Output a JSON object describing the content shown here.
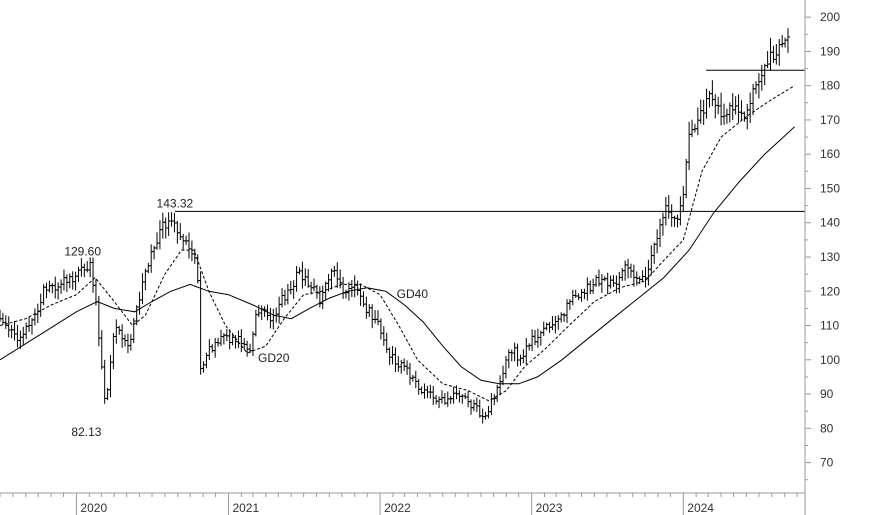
{
  "chart_data": {
    "type": "bar",
    "subtype": "ohlc",
    "title": "",
    "xlabel": "",
    "ylabel": "",
    "ylim": [
      62,
      205
    ],
    "y_ticks": [
      70,
      80,
      90,
      100,
      110,
      120,
      130,
      140,
      150,
      160,
      170,
      180,
      190,
      200
    ],
    "x_range": [
      "2019-07-01",
      "2024-10-20"
    ],
    "x_ticks": [
      {
        "date": "2020-01-01",
        "label": "2020"
      },
      {
        "date": "2021-01-01",
        "label": "2021"
      },
      {
        "date": "2022-01-01",
        "label": "2022"
      },
      {
        "date": "2023-01-01",
        "label": "2023"
      },
      {
        "date": "2024-01-01",
        "label": "2024"
      }
    ],
    "grid": false,
    "price_path": [
      [
        "2019-07-01",
        114
      ],
      [
        "2019-08-15",
        106
      ],
      [
        "2019-09-20",
        110
      ],
      [
        "2019-10-20",
        120
      ],
      [
        "2019-12-01",
        122
      ],
      [
        "2020-01-10",
        125
      ],
      [
        "2020-02-10",
        128
      ],
      [
        "2020-02-28",
        112
      ],
      [
        "2020-03-18",
        85
      ],
      [
        "2020-04-10",
        110
      ],
      [
        "2020-05-15",
        104
      ],
      [
        "2020-06-10",
        120
      ],
      [
        "2020-07-05",
        130
      ],
      [
        "2020-08-01",
        139
      ],
      [
        "2020-08-25",
        140
      ],
      [
        "2020-09-20",
        135
      ],
      [
        "2020-10-10",
        132
      ],
      [
        "2020-10-25",
        126
      ],
      [
        "2020-11-02",
        98
      ],
      [
        "2020-11-25",
        103
      ],
      [
        "2020-12-20",
        106
      ],
      [
        "2021-02-01",
        106
      ],
      [
        "2021-03-01",
        104
      ],
      [
        "2021-03-20",
        115
      ],
      [
        "2021-04-20",
        112
      ],
      [
        "2021-05-20",
        118
      ],
      [
        "2021-06-25",
        125
      ],
      [
        "2021-07-25",
        122
      ],
      [
        "2021-08-20",
        117
      ],
      [
        "2021-09-15",
        127
      ],
      [
        "2021-10-15",
        120
      ],
      [
        "2021-11-10",
        122
      ],
      [
        "2021-12-01",
        115
      ],
      [
        "2021-12-31",
        112
      ],
      [
        "2022-01-25",
        102
      ],
      [
        "2022-03-01",
        98
      ],
      [
        "2022-04-15",
        92
      ],
      [
        "2022-06-01",
        87
      ],
      [
        "2022-07-10",
        91
      ],
      [
        "2022-08-20",
        86
      ],
      [
        "2022-09-20",
        84
      ],
      [
        "2022-10-25",
        93
      ],
      [
        "2022-11-15",
        104
      ],
      [
        "2022-12-15",
        100
      ],
      [
        "2023-01-10",
        106
      ],
      [
        "2023-02-10",
        109
      ],
      [
        "2023-03-15",
        112
      ],
      [
        "2023-04-20",
        119
      ],
      [
        "2023-05-25",
        121
      ],
      [
        "2023-06-25",
        124
      ],
      [
        "2023-07-25",
        122
      ],
      [
        "2023-08-25",
        128
      ],
      [
        "2023-09-25",
        122
      ],
      [
        "2023-10-20",
        128
      ],
      [
        "2023-11-10",
        138
      ],
      [
        "2023-11-28",
        145
      ],
      [
        "2023-12-15",
        139
      ],
      [
        "2024-01-05",
        146
      ],
      [
        "2024-01-22",
        166
      ],
      [
        "2024-02-20",
        172
      ],
      [
        "2024-03-15",
        178
      ],
      [
        "2024-04-10",
        170
      ],
      [
        "2024-05-10",
        175
      ],
      [
        "2024-06-01",
        170
      ],
      [
        "2024-07-01",
        180
      ],
      [
        "2024-08-01",
        188
      ],
      [
        "2024-08-20",
        190
      ],
      [
        "2024-09-15",
        193
      ]
    ],
    "annotations": [
      {
        "text": "143.32",
        "date": "2020-08-25",
        "value": 143.32
      },
      {
        "text": "129.60",
        "date": "2020-02-10",
        "value": 129.6
      },
      {
        "text": "82.13",
        "date": "2020-03-18",
        "value": 82.13
      },
      {
        "text": "GD20",
        "date": "2021-04-20",
        "value": 104
      },
      {
        "text": "GD40",
        "date": "2022-02-10",
        "value": 118
      }
    ],
    "horizontal_lines": [
      {
        "value": 143.32,
        "from": "2020-08-25",
        "to": "2024-10-20"
      },
      {
        "value": 184.5,
        "from": "2024-02-25",
        "to": "2024-10-20"
      }
    ],
    "moving_averages": [
      {
        "name": "GD20",
        "style": "dashed",
        "points": [
          [
            "2019-07-01",
            110
          ],
          [
            "2019-09-01",
            112
          ],
          [
            "2019-11-01",
            116
          ],
          [
            "2020-01-01",
            119
          ],
          [
            "2020-02-15",
            124
          ],
          [
            "2020-04-01",
            117
          ],
          [
            "2020-05-15",
            110
          ],
          [
            "2020-06-15",
            113
          ],
          [
            "2020-08-01",
            125
          ],
          [
            "2020-09-10",
            132
          ],
          [
            "2020-10-10",
            132
          ],
          [
            "2020-11-15",
            120
          ],
          [
            "2020-12-25",
            110
          ],
          [
            "2021-02-15",
            102
          ],
          [
            "2021-04-01",
            104
          ],
          [
            "2021-05-15",
            112
          ],
          [
            "2021-07-01",
            119
          ],
          [
            "2021-08-15",
            120
          ],
          [
            "2021-10-01",
            122
          ],
          [
            "2021-11-15",
            122
          ],
          [
            "2022-01-01",
            119
          ],
          [
            "2022-02-15",
            110
          ],
          [
            "2022-04-01",
            100
          ],
          [
            "2022-06-01",
            93
          ],
          [
            "2022-08-01",
            91
          ],
          [
            "2022-09-20",
            88
          ],
          [
            "2022-11-01",
            91
          ],
          [
            "2022-12-15",
            98
          ],
          [
            "2023-02-01",
            103
          ],
          [
            "2023-04-01",
            110
          ],
          [
            "2023-06-01",
            117
          ],
          [
            "2023-08-01",
            121
          ],
          [
            "2023-10-01",
            123
          ],
          [
            "2023-11-15",
            129
          ],
          [
            "2024-01-01",
            135
          ],
          [
            "2024-02-15",
            155
          ],
          [
            "2024-04-01",
            165
          ],
          [
            "2024-06-01",
            171
          ],
          [
            "2024-08-01",
            176
          ],
          [
            "2024-09-25",
            180
          ]
        ]
      },
      {
        "name": "GD40",
        "style": "solid",
        "points": [
          [
            "2019-07-01",
            100
          ],
          [
            "2019-10-01",
            107
          ],
          [
            "2020-01-01",
            114
          ],
          [
            "2020-02-20",
            117
          ],
          [
            "2020-04-01",
            115
          ],
          [
            "2020-05-20",
            114
          ],
          [
            "2020-07-01",
            117
          ],
          [
            "2020-08-15",
            120
          ],
          [
            "2020-10-01",
            122
          ],
          [
            "2020-11-15",
            120
          ],
          [
            "2021-01-01",
            119
          ],
          [
            "2021-03-01",
            116
          ],
          [
            "2021-04-20",
            113
          ],
          [
            "2021-06-01",
            112
          ],
          [
            "2021-07-15",
            115
          ],
          [
            "2021-09-01",
            118
          ],
          [
            "2021-10-15",
            120
          ],
          [
            "2021-12-01",
            121
          ],
          [
            "2022-01-15",
            120
          ],
          [
            "2022-03-01",
            116
          ],
          [
            "2022-04-15",
            111
          ],
          [
            "2022-06-01",
            104
          ],
          [
            "2022-07-15",
            98
          ],
          [
            "2022-09-01",
            94
          ],
          [
            "2022-10-15",
            93
          ],
          [
            "2022-12-01",
            93
          ],
          [
            "2023-01-15",
            95
          ],
          [
            "2023-03-15",
            100
          ],
          [
            "2023-05-15",
            106
          ],
          [
            "2023-07-15",
            112
          ],
          [
            "2023-09-15",
            118
          ],
          [
            "2023-11-15",
            124
          ],
          [
            "2024-01-15",
            132
          ],
          [
            "2024-03-15",
            143
          ],
          [
            "2024-05-15",
            152
          ],
          [
            "2024-07-15",
            160
          ],
          [
            "2024-09-25",
            168
          ]
        ]
      }
    ]
  }
}
